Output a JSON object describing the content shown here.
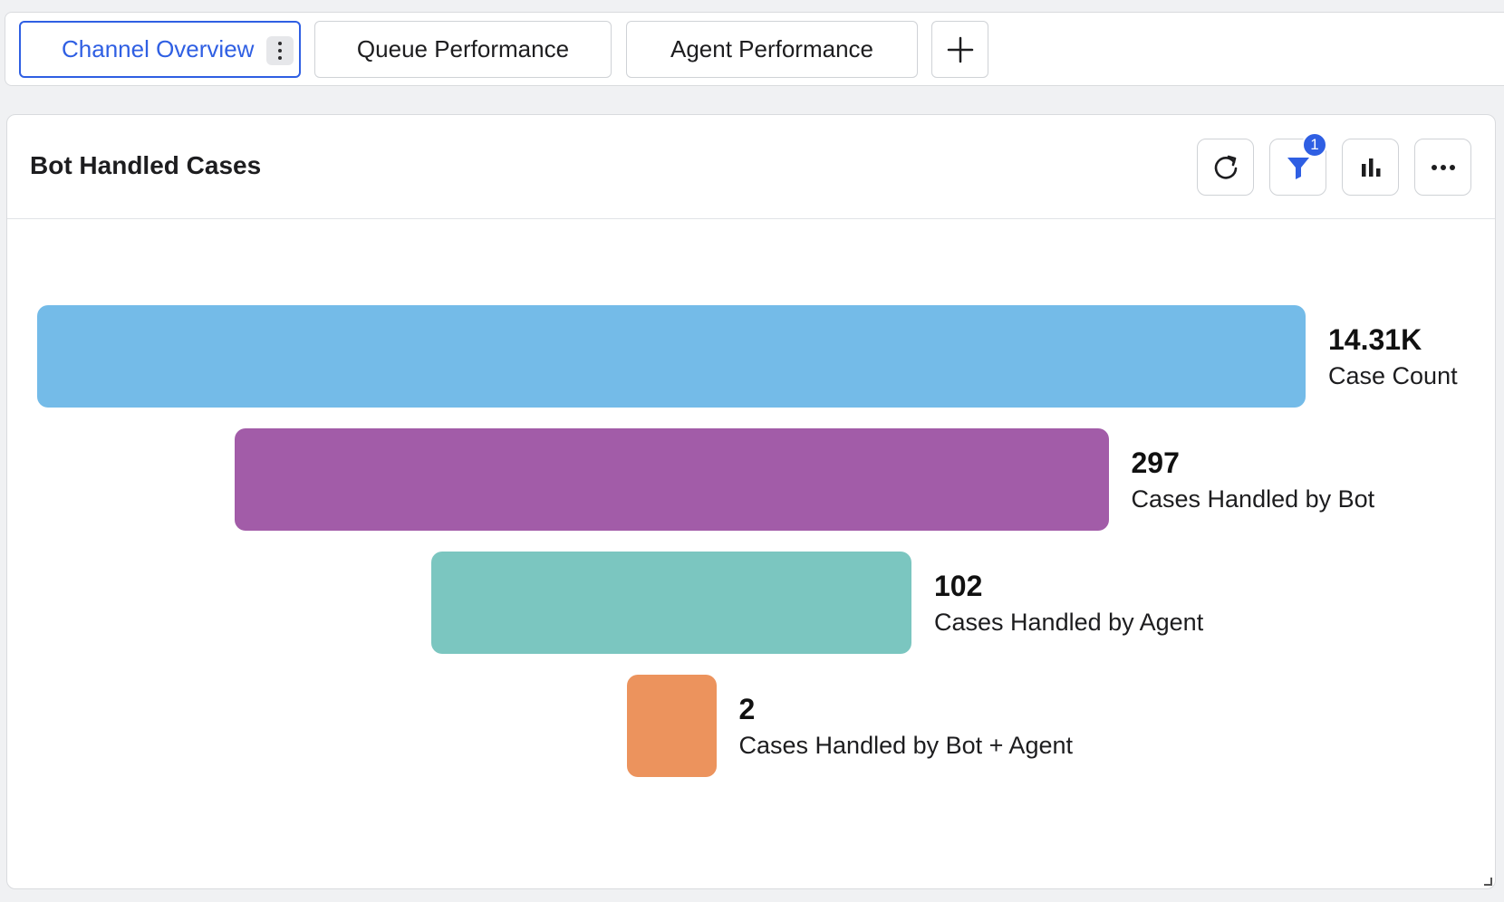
{
  "tabs": [
    {
      "label": "Channel Overview",
      "active": true
    },
    {
      "label": "Queue Performance",
      "active": false
    },
    {
      "label": "Agent Performance",
      "active": false
    }
  ],
  "widget": {
    "title": "Bot Handled Cases",
    "filter_count": "1",
    "header_icons": [
      "refresh-icon",
      "filter-icon",
      "bar-chart-icon",
      "more-horizontal-icon"
    ]
  },
  "chart_data": {
    "type": "funnel",
    "series": [
      {
        "value": 14310,
        "value_label": "14.31K",
        "label": "Case Count",
        "color": "#74bbe8"
      },
      {
        "value": 297,
        "value_label": "297",
        "label": "Cases Handled by Bot",
        "color": "#a25ca8"
      },
      {
        "value": 102,
        "value_label": "102",
        "label": "Cases Handled by Agent",
        "color": "#7bc6c0"
      },
      {
        "value": 2,
        "value_label": "2",
        "label": "Cases Handled by Bot + Agent",
        "color": "#ec935d"
      }
    ]
  }
}
